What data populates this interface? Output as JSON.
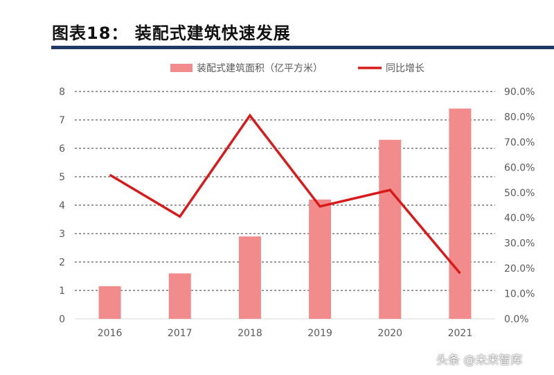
{
  "figure": {
    "title": "图表18：   装配式建筑快速发展",
    "watermark": "头条 @未来智库"
  },
  "colors": {
    "title_rule": "#1f3864",
    "bar": "#f28b8b",
    "line": "#d91a1a",
    "grid": "#333333",
    "axis_text": "#595959"
  },
  "chart_data": {
    "type": "bar",
    "categories": [
      "2016",
      "2017",
      "2018",
      "2019",
      "2020",
      "2021"
    ],
    "series": [
      {
        "name": "装配式建筑面积（亿平方米）",
        "type": "bar",
        "axis": "left",
        "values": [
          1.15,
          1.6,
          2.9,
          4.2,
          6.3,
          7.4
        ]
      },
      {
        "name": "同比增长",
        "type": "line",
        "axis": "right",
        "values": [
          57.0,
          40.5,
          80.5,
          44.5,
          51.0,
          18.0
        ]
      }
    ],
    "y_left": {
      "min": 0,
      "max": 8,
      "ticks": [
        "0",
        "1",
        "2",
        "3",
        "4",
        "5",
        "6",
        "7",
        "8"
      ]
    },
    "y_right": {
      "min": 0,
      "max": 90,
      "ticks": [
        "0.0%",
        "10.0%",
        "20.0%",
        "30.0%",
        "40.0%",
        "50.0%",
        "60.0%",
        "70.0%",
        "80.0%",
        "90.0%"
      ]
    },
    "grid": "dashed horizontal",
    "legend": "top-center"
  }
}
